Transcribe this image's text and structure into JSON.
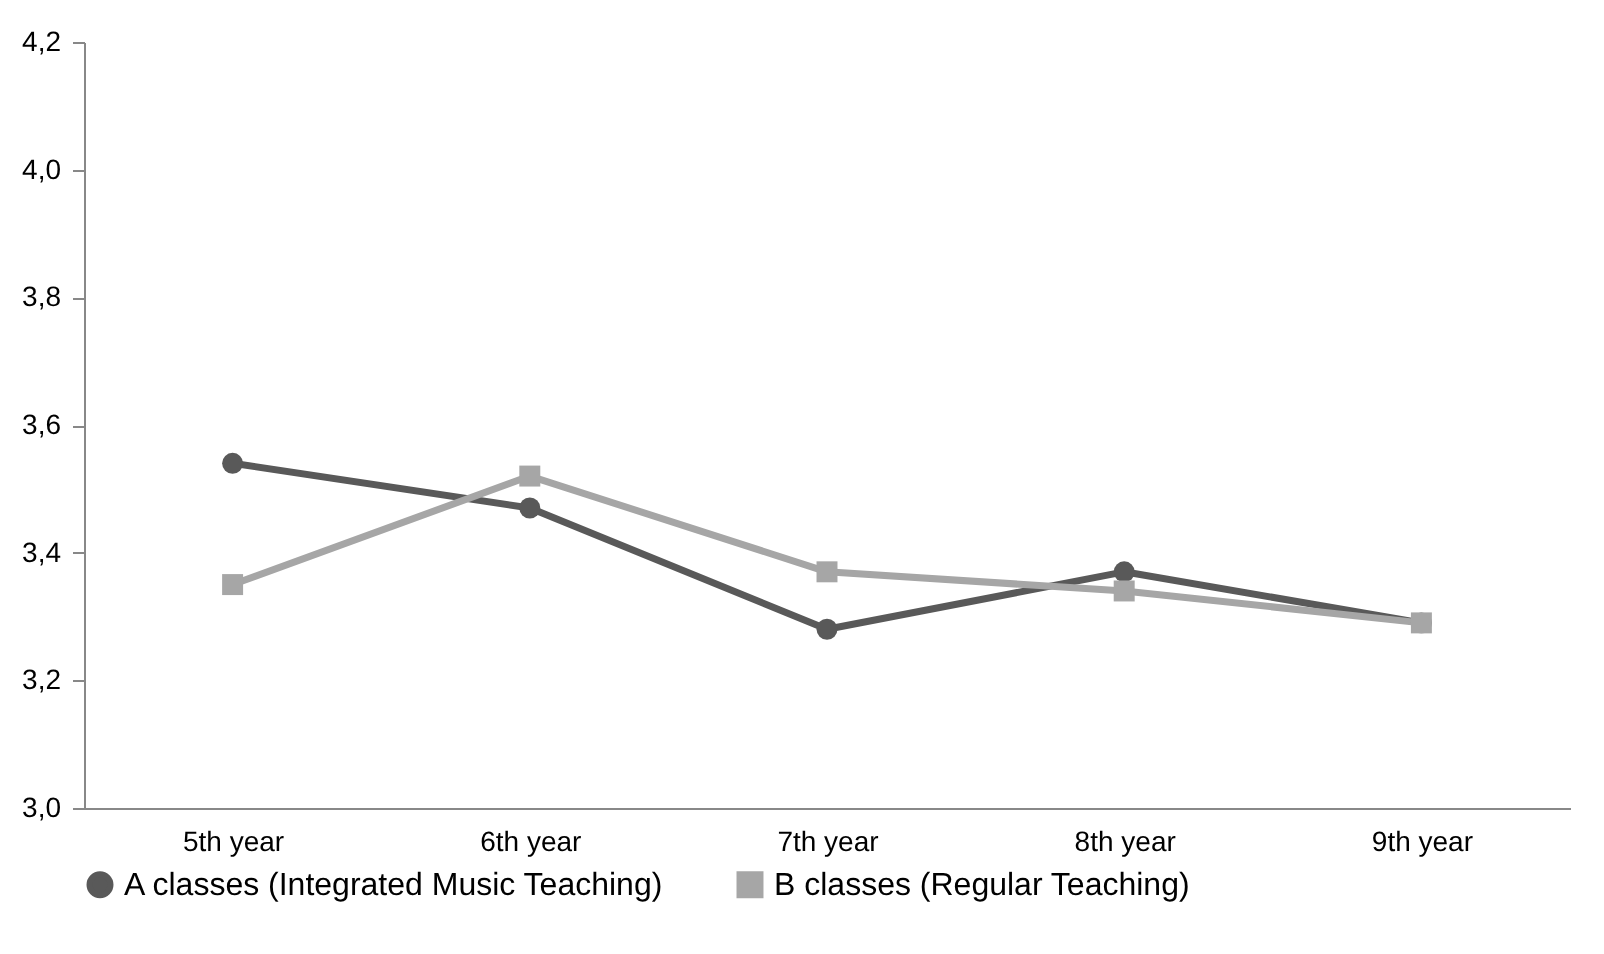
{
  "chart_data": {
    "type": "line",
    "categories": [
      "5th year",
      "6th year",
      "7th year",
      "8th year",
      "9th year"
    ],
    "series": [
      {
        "name": "A classes (Integrated Music Teaching)",
        "color": "#595959",
        "marker": "circle",
        "values": [
          3.54,
          3.47,
          3.28,
          3.37,
          3.29
        ]
      },
      {
        "name": "B classes (Regular Teaching)",
        "color": "#a6a6a6",
        "marker": "square",
        "values": [
          3.35,
          3.52,
          3.37,
          3.34,
          3.29
        ]
      }
    ],
    "ylim": [
      3.0,
      4.2
    ],
    "yticks": [
      {
        "value": 3.0,
        "label": "3,0"
      },
      {
        "value": 3.2,
        "label": "3,2"
      },
      {
        "value": 3.4,
        "label": "3,4"
      },
      {
        "value": 3.6,
        "label": "3,6"
      },
      {
        "value": 3.8,
        "label": "3,8"
      },
      {
        "value": 4.0,
        "label": "4,0"
      },
      {
        "value": 4.2,
        "label": "4,2"
      }
    ],
    "grid": false,
    "legend": "bottom",
    "line_style": "solid"
  }
}
